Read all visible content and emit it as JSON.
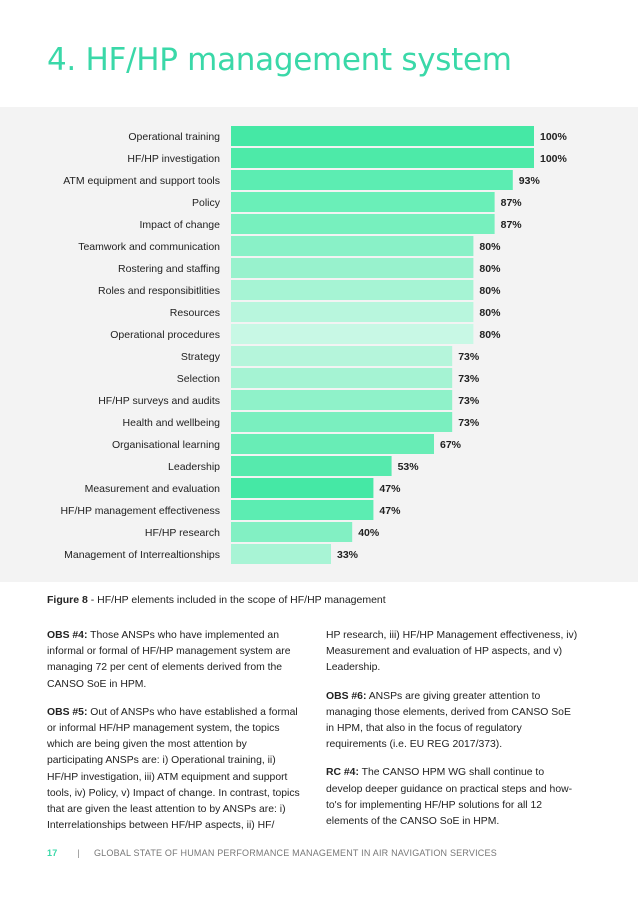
{
  "page_title": "4. HF/HP management system",
  "chart_data": {
    "type": "bar",
    "orientation": "horizontal",
    "categories": [
      "Operational training",
      "HF/HP investigation",
      "ATM equipment and support tools",
      "Policy",
      "Impact of change",
      "Teamwork and communication",
      "Rostering and staffing",
      "Roles and responsibitlities",
      "Resources",
      "Operational procedures",
      "Strategy",
      "Selection",
      "HF/HP surveys and audits",
      "Health and wellbeing",
      "Organisational learning",
      "Leadership",
      "Measurement and evaluation",
      "HF/HP management effectiveness",
      "HF/HP research",
      "Management of Interrealtionships"
    ],
    "values": [
      100,
      100,
      93,
      87,
      87,
      80,
      80,
      80,
      80,
      80,
      73,
      73,
      73,
      73,
      67,
      53,
      47,
      47,
      40,
      33
    ],
    "value_labels": [
      "100%",
      "100%",
      "93%",
      "87%",
      "87%",
      "80%",
      "80%",
      "80%",
      "80%",
      "80%",
      "73%",
      "73%",
      "73%",
      "73%",
      "67%",
      "53%",
      "47%",
      "47%",
      "40%",
      "33%"
    ],
    "colors": [
      "#45e8a5",
      "#4deaa8",
      "#5cedb2",
      "#6aefb8",
      "#77f0be",
      "#89f1c7",
      "#98f2cd",
      "#a6f4d4",
      "#b8f6dd",
      "#c8f8e5",
      "#b5f5db",
      "#a5f3d3",
      "#8ff2c9",
      "#7aefbf",
      "#68edb6",
      "#56eaad",
      "#45e8a5",
      "#5cedb2",
      "#82f0c3",
      "#a8f4d5"
    ],
    "xlim": [
      0,
      100
    ],
    "title": "",
    "xlabel": "",
    "ylabel": ""
  },
  "caption": {
    "label": "Figure 8",
    "text": " - HF/HP elements included in the scope of HF/HP management"
  },
  "left_column": [
    {
      "label": "OBS #4:",
      "text": " Those ANSPs who have implemented an informal or formal of HF/HP management system are managing 72 per cent of elements derived from the CANSO SoE in HPM."
    },
    {
      "label": "OBS #5:",
      "text": " Out of ANSPs who have established a formal or informal HF/HP management system, the topics which are being given the most attention by participating ANSPs are: i) Operational training, ii) HF/HP investigation, iii) ATM equipment and support tools, iv) Policy, v) Impact of change. In contrast, topics that are given the least attention to by ANSPs are: i) Interrelationships between HF/HP aspects, ii) HF/"
    }
  ],
  "right_column": [
    {
      "label": "",
      "text": "HP research, iii) HF/HP Management effectiveness, iv) Measurement and evaluation of HP aspects, and v) Leadership."
    },
    {
      "label": "OBS #6:",
      "text": " ANSPs are giving greater attention to managing those elements, derived from CANSO SoE in HPM, that also in the focus of regulatory requirements (i.e. EU REG 2017/373)."
    },
    {
      "label": "RC #4:",
      "text": " The CANSO HPM WG shall continue to develop deeper guidance on practical steps and how-to's for implementing HF/HP solutions for all 12 elements of the CANSO SoE in HPM."
    }
  ],
  "footer": {
    "page_number": "17",
    "separator": "|",
    "text": "GLOBAL STATE OF HUMAN PERFORMANCE MANAGEMENT IN AIR NAVIGATION SERVICES"
  }
}
